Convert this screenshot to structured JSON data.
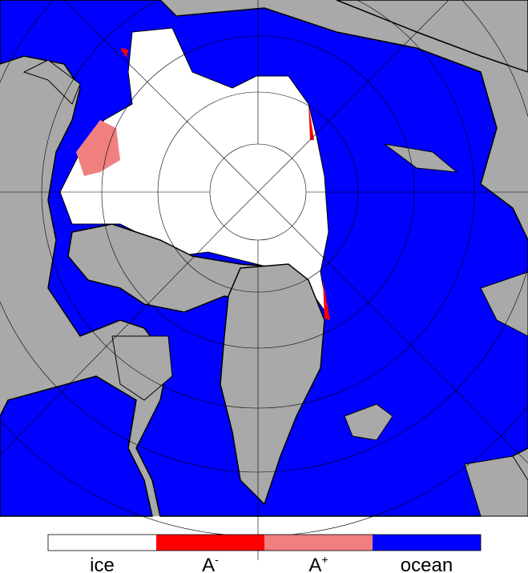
{
  "legend": {
    "items": [
      {
        "label": "ice",
        "color": "#ffffff"
      },
      {
        "label": "A",
        "sup": "-",
        "color": "#ff0000"
      },
      {
        "label": "A",
        "sup": "+",
        "color": "#f08080"
      },
      {
        "label": "ocean",
        "color": "#0000ff"
      }
    ]
  }
}
